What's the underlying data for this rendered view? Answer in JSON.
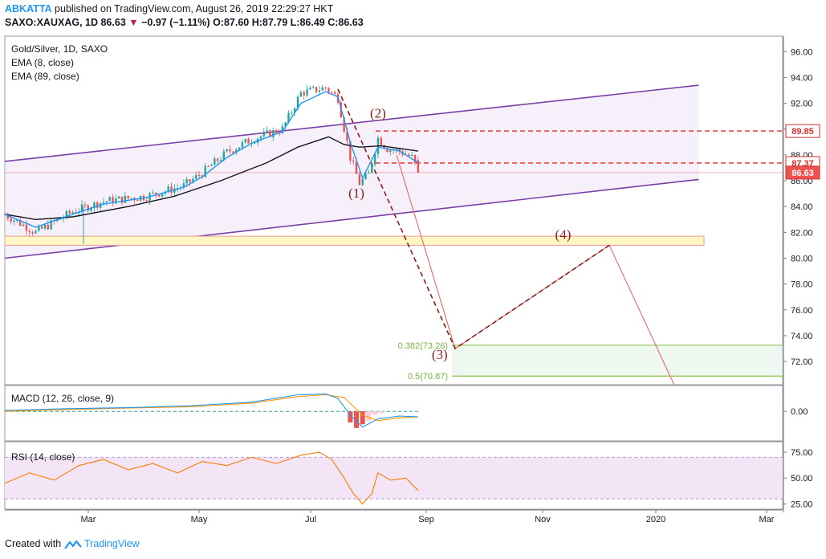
{
  "header": {
    "author": "ABKATTA",
    "published_text": "published on TradingView.com, August 26, 2019 22:29:27 HKT",
    "symbol": "SAXO:XAUXAG, 1D",
    "last": "86.63",
    "change": "−0.97 (−1.11%)",
    "ohlc": "O:87.60 H:87.79 L:86.49 C:86.63"
  },
  "legend": {
    "title": "Gold/Silver, 1D, SAXO",
    "ema_fast": "EMA (8, close)",
    "ema_slow": "EMA (89, close)",
    "macd": "MACD (12, 26, close, 9)",
    "rsi": "RSI (14, close)"
  },
  "footer": {
    "created_with": "Created with",
    "brand": "TradingView"
  },
  "colors": {
    "candle_up": "#26a69a",
    "candle_down": "#ef5350",
    "ema_fast": "#2196f3",
    "ema_slow": "#131722",
    "channel": "#7b3fa8",
    "projection": "#e57373",
    "wave_dash": "#8b1a1a",
    "fib_line": "#8bc34a",
    "resistance": "#e53935",
    "rsi_line": "#f57c00",
    "rsi_band": "#f3e5f5"
  },
  "chart_data": [
    {
      "type": "candlestick",
      "title": "Gold/Silver, 1D, SAXO",
      "x_ticks": [
        "Mar",
        "May",
        "Jul",
        "Sep",
        "Nov",
        "2020",
        "Mar"
      ],
      "y_ticks": [
        "96.00",
        "94.00",
        "92.00",
        "90.00",
        "88.00",
        "86.00",
        "84.00",
        "82.00",
        "80.00",
        "78.00",
        "76.00",
        "74.00",
        "72.00"
      ],
      "ylim": [
        70.2,
        97.2
      ],
      "price_labels": [
        {
          "value": 89.85,
          "text": "89.85"
        },
        {
          "value": 87.37,
          "text": "87.37"
        },
        {
          "value": 86.63,
          "text": "86.63"
        }
      ],
      "wave_labels": [
        {
          "label": "(1)",
          "t": 114,
          "price": 84.7
        },
        {
          "label": "(2)",
          "t": 121,
          "price": 90.9
        },
        {
          "label": "(3)",
          "t": 141,
          "price": 72.2
        },
        {
          "label": "(4)",
          "t": 181,
          "price": 81.5
        }
      ],
      "fib_levels": [
        {
          "text": "0.382(73.26)",
          "value": 73.26
        },
        {
          "text": "0.5(70.87)",
          "value": 70.87
        }
      ],
      "price_path": [
        [
          0,
          83.4
        ],
        [
          10,
          82.0
        ],
        [
          22,
          83.6
        ],
        [
          32,
          84.4
        ],
        [
          46,
          84.8
        ],
        [
          58,
          85.6
        ],
        [
          64,
          86.6
        ],
        [
          72,
          88.2
        ],
        [
          80,
          89.2
        ],
        [
          90,
          90.0
        ],
        [
          96,
          92.8
        ],
        [
          104,
          93.2
        ],
        [
          108,
          92.4
        ],
        [
          112,
          87.8
        ],
        [
          115,
          85.8
        ],
        [
          118,
          86.5
        ],
        [
          121,
          89.3
        ],
        [
          124,
          88.5
        ],
        [
          128,
          88.3
        ],
        [
          132,
          87.8
        ],
        [
          134,
          86.63
        ]
      ],
      "ema_fast": [
        [
          0,
          83.4
        ],
        [
          10,
          82.4
        ],
        [
          22,
          83.4
        ],
        [
          32,
          84.2
        ],
        [
          46,
          84.7
        ],
        [
          58,
          85.5
        ],
        [
          64,
          86.3
        ],
        [
          72,
          87.8
        ],
        [
          80,
          88.9
        ],
        [
          90,
          89.8
        ],
        [
          96,
          92.0
        ],
        [
          104,
          92.9
        ],
        [
          108,
          92.5
        ],
        [
          112,
          89.0
        ],
        [
          116,
          86.2
        ],
        [
          121,
          88.6
        ],
        [
          128,
          88.3
        ],
        [
          134,
          87.4
        ]
      ],
      "ema_slow": [
        [
          0,
          83.4
        ],
        [
          10,
          83.0
        ],
        [
          22,
          83.2
        ],
        [
          40,
          84.0
        ],
        [
          55,
          84.8
        ],
        [
          70,
          86.0
        ],
        [
          85,
          87.4
        ],
        [
          95,
          88.6
        ],
        [
          105,
          89.4
        ],
        [
          110,
          88.8
        ],
        [
          115,
          88.6
        ],
        [
          122,
          88.7
        ],
        [
          134,
          88.3
        ]
      ],
      "channel_upper": [
        [
          0,
          87.5
        ],
        [
          225,
          93.4
        ]
      ],
      "channel_lower": [
        [
          0,
          80.0
        ],
        [
          225,
          86.1
        ]
      ],
      "support_zone": [
        81.0,
        81.7
      ],
      "projection_solid": [
        [
          127,
          88.0
        ],
        [
          146,
          73.0
        ],
        [
          196,
          81.0
        ],
        [
          217,
          70.2
        ]
      ],
      "projection_dashed": [
        [
          108,
          93.1
        ],
        [
          146,
          73.0
        ],
        [
          196,
          81.0
        ]
      ]
    },
    {
      "type": "line",
      "title": "MACD (12, 26, close, 9)",
      "y_ticks": [
        "0.00"
      ],
      "ylim": [
        -1.6,
        1.4
      ],
      "macd": [
        [
          0,
          0.05
        ],
        [
          20,
          0.15
        ],
        [
          40,
          0.2
        ],
        [
          60,
          0.3
        ],
        [
          80,
          0.5
        ],
        [
          95,
          0.9
        ],
        [
          104,
          0.95
        ],
        [
          108,
          0.7
        ],
        [
          112,
          -0.2
        ],
        [
          116,
          -0.85
        ],
        [
          121,
          -0.4
        ],
        [
          128,
          -0.25
        ],
        [
          134,
          -0.3
        ]
      ],
      "signal": [
        [
          0,
          0.0
        ],
        [
          20,
          0.1
        ],
        [
          40,
          0.18
        ],
        [
          60,
          0.25
        ],
        [
          80,
          0.45
        ],
        [
          95,
          0.8
        ],
        [
          104,
          0.9
        ],
        [
          110,
          0.75
        ],
        [
          116,
          -0.2
        ],
        [
          121,
          -0.5
        ],
        [
          128,
          -0.35
        ],
        [
          134,
          -0.3
        ]
      ],
      "histogram": [
        [
          112,
          -0.6
        ],
        [
          114,
          -0.9
        ],
        [
          116,
          -0.7
        ],
        [
          118,
          -0.5
        ],
        [
          120,
          -0.2
        ],
        [
          122,
          -0.1
        ]
      ]
    },
    {
      "type": "line",
      "title": "RSI (14, close)",
      "y_ticks": [
        "75.00",
        "50.00",
        "25.00"
      ],
      "ylim": [
        20,
        85
      ],
      "band": [
        30,
        70
      ],
      "rsi": [
        [
          0,
          45
        ],
        [
          8,
          55
        ],
        [
          16,
          48
        ],
        [
          24,
          62
        ],
        [
          32,
          68
        ],
        [
          40,
          58
        ],
        [
          48,
          64
        ],
        [
          56,
          55
        ],
        [
          64,
          66
        ],
        [
          72,
          62
        ],
        [
          80,
          70
        ],
        [
          88,
          64
        ],
        [
          96,
          72
        ],
        [
          102,
          75
        ],
        [
          106,
          68
        ],
        [
          110,
          50
        ],
        [
          113,
          35
        ],
        [
          116,
          25
        ],
        [
          119,
          35
        ],
        [
          121,
          55
        ],
        [
          125,
          48
        ],
        [
          130,
          50
        ],
        [
          134,
          38
        ]
      ]
    }
  ]
}
